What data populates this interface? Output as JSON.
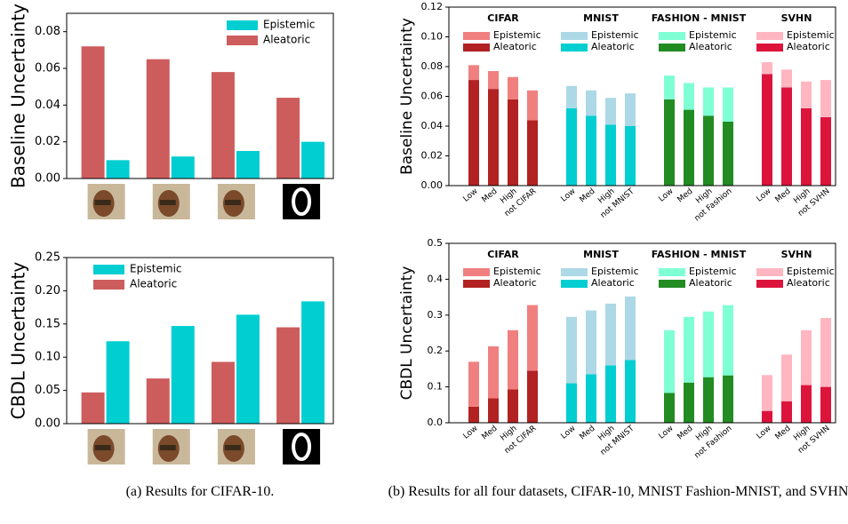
{
  "chart_data": [
    {
      "type": "bar",
      "ylabel": "Baseline Uncertainty",
      "legend": "upper right",
      "categories": [
        null,
        null,
        null,
        null
      ],
      "series": [
        {
          "name": "Epistemic",
          "color": "#00ced1",
          "values": [
            0.01,
            0.012,
            0.015,
            0.02
          ]
        },
        {
          "name": "Aleatoric",
          "color": "#cd5c5c",
          "values": [
            0.072,
            0.065,
            0.058,
            0.044
          ]
        }
      ],
      "ylim": [
        0,
        0.09
      ],
      "yticks": [
        {
          "value": 0,
          "label": "0.00"
        },
        0.02,
        0.04,
        0.06,
        0.08
      ]
    },
    {
      "type": "bar",
      "ylabel": "CBDL Uncertainty",
      "legend": "upper left",
      "categories": [
        null,
        null,
        null,
        null
      ],
      "series": [
        {
          "name": "Epistemic",
          "color": "#00ced1",
          "values": [
            0.124,
            0.147,
            0.164,
            0.184
          ]
        },
        {
          "name": "Aleatoric",
          "color": "#cd5c5c",
          "values": [
            0.047,
            0.068,
            0.093,
            0.145
          ]
        }
      ],
      "ylim": [
        0,
        0.25
      ],
      "yticks": [
        {
          "value": 0,
          "label": "0.00"
        },
        0.05,
        {
          "value": 0.1,
          "label": "0.10"
        },
        0.15,
        {
          "value": 0.2,
          "label": "0.20"
        },
        0.25
      ]
    },
    {
      "type": "stacked_bar",
      "ylabel": "Baseline Uncertainty",
      "groups": [
        "CIFAR",
        "MNIST",
        "FASHION - MNIST",
        "SVHN"
      ],
      "categories": [
        "Low",
        "Med",
        "High",
        "not CIFAR",
        "Low",
        "Med",
        "High",
        "not MNIST",
        "Low",
        "Med",
        "High",
        "not Fashion",
        "Low",
        "Med",
        "High",
        "not SVHN"
      ],
      "series": [
        {
          "name": "Epistemic",
          "color": "#f08080",
          "values": [
            0.01,
            0.012,
            0.015,
            0.02,
            null,
            null,
            null,
            null,
            null,
            null,
            null,
            null,
            null,
            null,
            null,
            null
          ]
        },
        {
          "name": "Aleatoric",
          "color": "#b22222",
          "values": [
            0.071,
            0.065,
            0.058,
            0.044,
            null,
            null,
            null,
            null,
            null,
            null,
            null,
            null,
            null,
            null,
            null,
            null
          ]
        },
        {
          "name": "Epistemic",
          "color": "#add8e6",
          "values": [
            null,
            null,
            null,
            null,
            0.015,
            0.017,
            0.018,
            0.022,
            null,
            null,
            null,
            null,
            null,
            null,
            null,
            null
          ]
        },
        {
          "name": "Aleatoric",
          "color": "#00ced1",
          "values": [
            null,
            null,
            null,
            null,
            0.052,
            0.047,
            0.041,
            0.04,
            null,
            null,
            null,
            null,
            null,
            null,
            null,
            null
          ]
        },
        {
          "name": "Epistemic",
          "color": "#7fffd4",
          "values": [
            null,
            null,
            null,
            null,
            null,
            null,
            null,
            null,
            0.016,
            0.018,
            0.019,
            0.023,
            null,
            null,
            null,
            null
          ]
        },
        {
          "name": "Aleatoric",
          "color": "#228b22",
          "values": [
            null,
            null,
            null,
            null,
            null,
            null,
            null,
            null,
            0.058,
            0.051,
            0.047,
            0.043,
            null,
            null,
            null,
            null
          ]
        },
        {
          "name": "Epistemic",
          "color": "#ffb6c1",
          "values": [
            null,
            null,
            null,
            null,
            null,
            null,
            null,
            null,
            null,
            null,
            null,
            null,
            0.008,
            0.012,
            0.018,
            0.025
          ]
        },
        {
          "name": "Aleatoric",
          "color": "#dc143c",
          "values": [
            null,
            null,
            null,
            null,
            null,
            null,
            null,
            null,
            null,
            null,
            null,
            null,
            0.075,
            0.066,
            0.052,
            0.046
          ]
        }
      ],
      "ylim": [
        0,
        0.12
      ],
      "yticks": [
        {
          "value": 0,
          "label": "0.00"
        },
        0.02,
        0.04,
        0.06,
        0.08,
        {
          "value": 0.1,
          "label": "0.10"
        },
        0.12
      ]
    },
    {
      "type": "stacked_bar",
      "ylabel": "CBDL Uncertainty",
      "groups": [
        "CIFAR",
        "MNIST",
        "FASHION - MNIST",
        "SVHN"
      ],
      "categories": [
        "Low",
        "Med",
        "High",
        "not CIFAR",
        "Low",
        "Med",
        "High",
        "not MNIST",
        "Low",
        "Med",
        "High",
        "not Fashion",
        "Low",
        "Med",
        "High",
        "not SVHN"
      ],
      "series": [
        {
          "name": "Epistemic",
          "color": "#f08080",
          "values": [
            0.125,
            0.145,
            0.165,
            0.183,
            null,
            null,
            null,
            null,
            null,
            null,
            null,
            null,
            null,
            null,
            null,
            null
          ]
        },
        {
          "name": "Aleatoric",
          "color": "#b22222",
          "values": [
            0.045,
            0.068,
            0.093,
            0.145,
            null,
            null,
            null,
            null,
            null,
            null,
            null,
            null,
            null,
            null,
            null,
            null
          ]
        },
        {
          "name": "Epistemic",
          "color": "#add8e6",
          "values": [
            null,
            null,
            null,
            null,
            0.185,
            0.178,
            0.172,
            0.177,
            null,
            null,
            null,
            null,
            null,
            null,
            null,
            null
          ]
        },
        {
          "name": "Aleatoric",
          "color": "#00ced1",
          "values": [
            null,
            null,
            null,
            null,
            0.11,
            0.135,
            0.16,
            0.175,
            null,
            null,
            null,
            null,
            null,
            null,
            null,
            null
          ]
        },
        {
          "name": "Epistemic",
          "color": "#7fffd4",
          "values": [
            null,
            null,
            null,
            null,
            null,
            null,
            null,
            null,
            0.175,
            0.183,
            0.183,
            0.196,
            null,
            null,
            null,
            null
          ]
        },
        {
          "name": "Aleatoric",
          "color": "#228b22",
          "values": [
            null,
            null,
            null,
            null,
            null,
            null,
            null,
            null,
            0.083,
            0.112,
            0.127,
            0.132,
            null,
            null,
            null,
            null
          ]
        },
        {
          "name": "Epistemic",
          "color": "#ffb6c1",
          "values": [
            null,
            null,
            null,
            null,
            null,
            null,
            null,
            null,
            null,
            null,
            null,
            null,
            0.1,
            0.13,
            0.153,
            0.192
          ]
        },
        {
          "name": "Aleatoric",
          "color": "#dc143c",
          "values": [
            null,
            null,
            null,
            null,
            null,
            null,
            null,
            null,
            null,
            null,
            null,
            null,
            0.033,
            0.06,
            0.105,
            0.1
          ]
        }
      ],
      "ylim": [
        0,
        0.5
      ],
      "yticks": [
        {
          "value": 0,
          "label": "0.0"
        },
        0.1,
        0.2,
        0.3,
        0.4,
        0.5
      ]
    }
  ],
  "captions": [
    "(a) Results for CIFAR-10.",
    "(b) Results for all four datasets, CIFAR-10, MNIST Fashion-MNIST, and SVHN."
  ]
}
